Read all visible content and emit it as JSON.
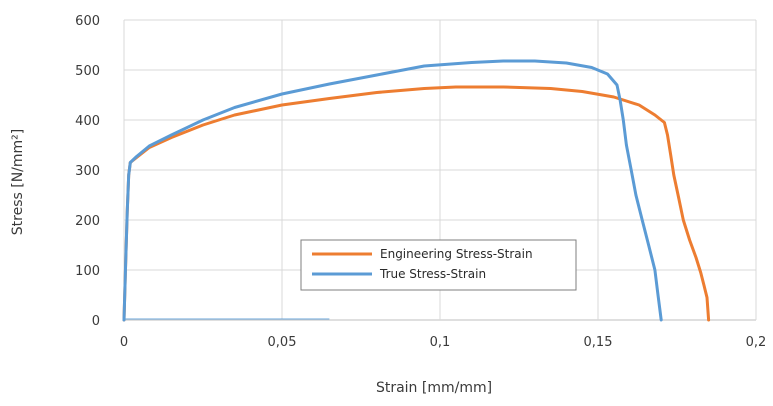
{
  "chart_data": {
    "type": "line",
    "title": "",
    "xlabel": "Strain [mm/mm]",
    "ylabel": "Stress [N/mm²]",
    "xlim": [
      0,
      0.2
    ],
    "ylim": [
      0,
      600
    ],
    "x_ticks": [
      0,
      0.05,
      0.1,
      0.15,
      0.2
    ],
    "x_tick_labels": [
      "0",
      "0,05",
      "0,1",
      "0,15",
      "0,2"
    ],
    "y_ticks": [
      0,
      100,
      200,
      300,
      400,
      500,
      600
    ],
    "y_tick_labels": [
      "0",
      "100",
      "200",
      "300",
      "400",
      "500",
      "600"
    ],
    "grid": true,
    "legend_position": "lower-center",
    "series": [
      {
        "name": "Engineering Stress-Strain",
        "color": "#ED7D31",
        "points": [
          [
            0,
            0
          ],
          [
            0.0005,
            110
          ],
          [
            0.001,
            215
          ],
          [
            0.0015,
            290
          ],
          [
            0.002,
            315
          ],
          [
            0.004,
            325
          ],
          [
            0.008,
            345
          ],
          [
            0.015,
            365
          ],
          [
            0.025,
            390
          ],
          [
            0.035,
            410
          ],
          [
            0.05,
            430
          ],
          [
            0.065,
            443
          ],
          [
            0.08,
            455
          ],
          [
            0.095,
            463
          ],
          [
            0.105,
            466
          ],
          [
            0.12,
            466
          ],
          [
            0.135,
            463
          ],
          [
            0.145,
            457
          ],
          [
            0.155,
            446
          ],
          [
            0.163,
            430
          ],
          [
            0.168,
            410
          ],
          [
            0.171,
            395
          ],
          [
            0.172,
            370
          ],
          [
            0.173,
            330
          ],
          [
            0.174,
            290
          ],
          [
            0.1755,
            245
          ],
          [
            0.177,
            200
          ],
          [
            0.179,
            160
          ],
          [
            0.181,
            125
          ],
          [
            0.1825,
            95
          ],
          [
            0.1835,
            70
          ],
          [
            0.1845,
            45
          ],
          [
            0.185,
            0
          ]
        ]
      },
      {
        "name": "True Stress-Strain",
        "color": "#5B9BD5",
        "points": [
          [
            0,
            0
          ],
          [
            0.0005,
            110
          ],
          [
            0.001,
            215
          ],
          [
            0.0015,
            290
          ],
          [
            0.002,
            315
          ],
          [
            0.004,
            327
          ],
          [
            0.008,
            348
          ],
          [
            0.015,
            370
          ],
          [
            0.025,
            400
          ],
          [
            0.035,
            425
          ],
          [
            0.05,
            452
          ],
          [
            0.065,
            472
          ],
          [
            0.08,
            490
          ],
          [
            0.095,
            508
          ],
          [
            0.11,
            515
          ],
          [
            0.12,
            518
          ],
          [
            0.13,
            518
          ],
          [
            0.14,
            514
          ],
          [
            0.148,
            505
          ],
          [
            0.153,
            492
          ],
          [
            0.156,
            470
          ],
          [
            0.157,
            440
          ],
          [
            0.158,
            400
          ],
          [
            0.159,
            350
          ],
          [
            0.1605,
            300
          ],
          [
            0.162,
            250
          ],
          [
            0.164,
            200
          ],
          [
            0.166,
            150
          ],
          [
            0.168,
            100
          ],
          [
            0.169,
            50
          ],
          [
            0.1695,
            25
          ],
          [
            0.17,
            0
          ]
        ]
      }
    ]
  }
}
